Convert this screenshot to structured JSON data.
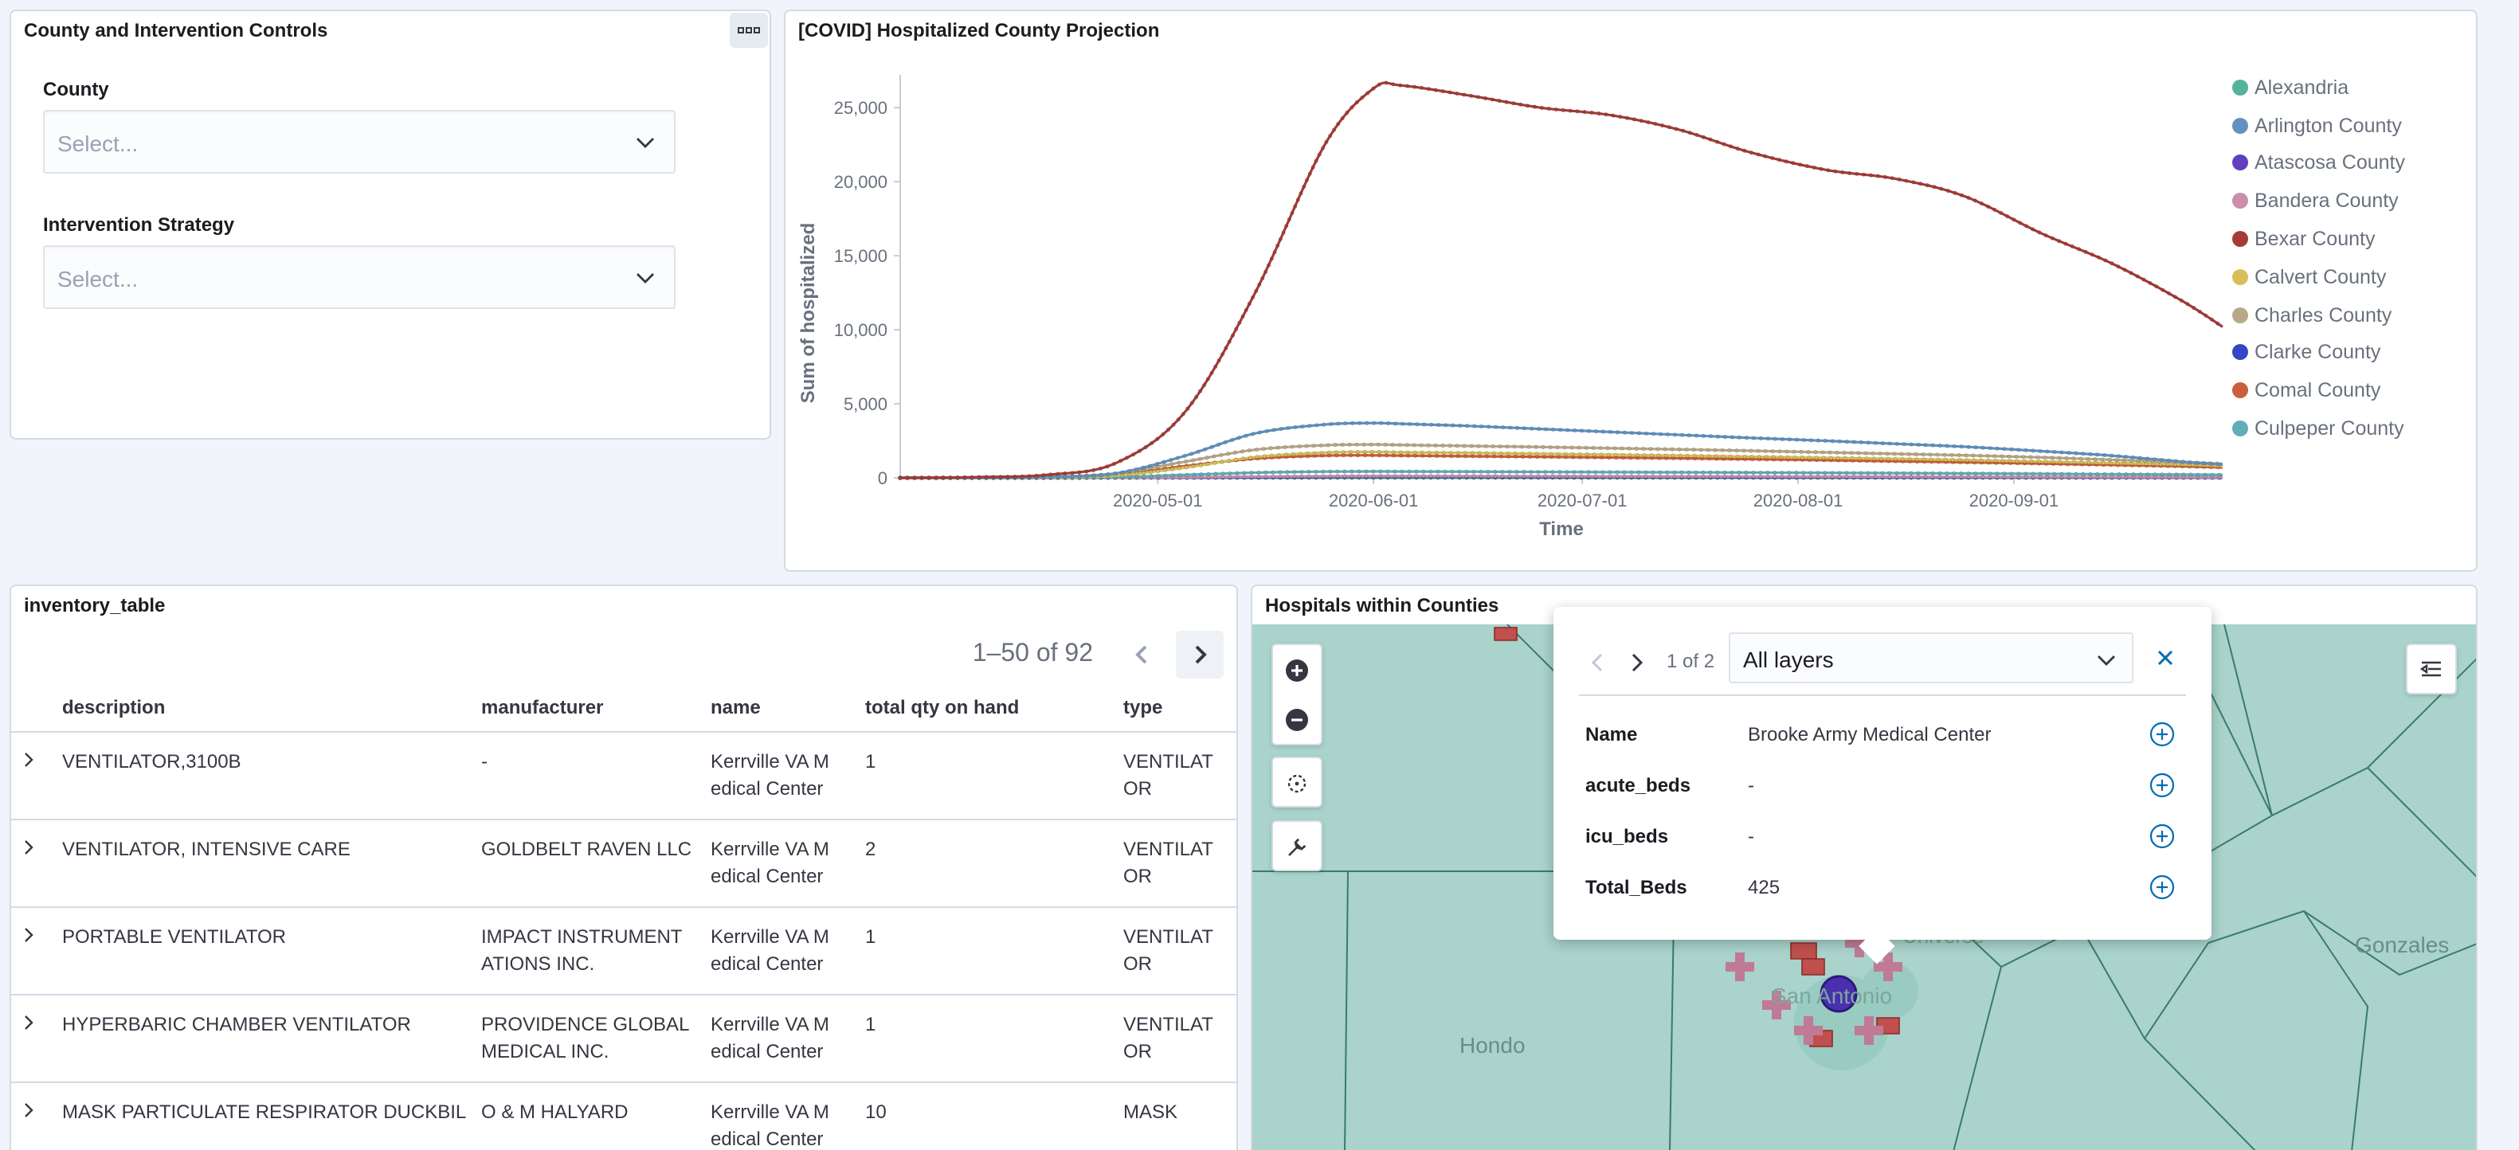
{
  "controls": {
    "title": "County and Intervention Controls",
    "menu_icon": "ellipsis-icon",
    "county_label": "County",
    "county_placeholder": "Select...",
    "strategy_label": "Intervention Strategy",
    "strategy_placeholder": "Select..."
  },
  "chart_panel": {
    "title": "[COVID] Hospitalized County Projection"
  },
  "chart_data": {
    "type": "line",
    "title": "[COVID] Hospitalized County Projection",
    "xlabel": "Time",
    "ylabel": "Sum of hospitalized",
    "x_ticks": [
      "2020-05-01",
      "2020-06-01",
      "2020-07-01",
      "2020-08-01",
      "2020-09-01"
    ],
    "y_ticks": [
      "0",
      "5,000",
      "10,000",
      "15,000",
      "20,000",
      "25,000"
    ],
    "ylim": [
      0,
      27000
    ],
    "x_dates": [
      "2020-03-25",
      "2020-04-05",
      "2020-04-15",
      "2020-04-25",
      "2020-05-05",
      "2020-05-15",
      "2020-05-25",
      "2020-06-01",
      "2020-06-05",
      "2020-06-15",
      "2020-06-25",
      "2020-07-05",
      "2020-07-15",
      "2020-07-25",
      "2020-08-05",
      "2020-08-15",
      "2020-08-25",
      "2020-09-05",
      "2020-09-15",
      "2020-09-25",
      "2020-10-01"
    ],
    "legend_position": "right",
    "series": [
      {
        "name": "Alexandria",
        "color": "#54b399",
        "values": [
          0,
          0,
          0,
          0,
          0,
          0,
          0,
          0,
          0,
          0,
          0,
          0,
          0,
          0,
          0,
          0,
          0,
          0,
          0,
          0,
          0
        ]
      },
      {
        "name": "Arlington County",
        "color": "#6092c0",
        "values": [
          0,
          10,
          60,
          300,
          1500,
          3000,
          3600,
          3700,
          3650,
          3500,
          3300,
          3100,
          2900,
          2700,
          2500,
          2300,
          2100,
          1800,
          1500,
          1100,
          900
        ]
      },
      {
        "name": "Atascosa County",
        "color": "#6040c0",
        "values": [
          0,
          0,
          0,
          5,
          20,
          40,
          60,
          70,
          70,
          70,
          65,
          60,
          55,
          50,
          45,
          40,
          35,
          30,
          25,
          20,
          18
        ]
      },
      {
        "name": "Bandera County",
        "color": "#ca8eae",
        "values": [
          0,
          0,
          2,
          10,
          40,
          80,
          110,
          120,
          120,
          115,
          110,
          100,
          95,
          90,
          80,
          75,
          70,
          60,
          55,
          45,
          40
        ]
      },
      {
        "name": "Bexar County",
        "color": "#a53b36",
        "values": [
          0,
          50,
          200,
          1000,
          4500,
          12500,
          22500,
          26300,
          26500,
          25800,
          25000,
          24500,
          23500,
          22000,
          20800,
          20200,
          19000,
          16500,
          14500,
          12000,
          10200
        ]
      },
      {
        "name": "Calvert County",
        "color": "#d6bf57",
        "values": [
          0,
          5,
          30,
          150,
          700,
          1400,
          1700,
          1750,
          1720,
          1680,
          1620,
          1560,
          1500,
          1430,
          1350,
          1280,
          1200,
          1100,
          1000,
          900,
          800
        ]
      },
      {
        "name": "Charles County",
        "color": "#b9a888",
        "values": [
          0,
          10,
          60,
          300,
          1100,
          1900,
          2200,
          2250,
          2220,
          2150,
          2080,
          2000,
          1920,
          1830,
          1720,
          1620,
          1520,
          1380,
          1220,
          1050,
          950
        ]
      },
      {
        "name": "Clarke County",
        "color": "#3445c8",
        "values": [
          0,
          0,
          1,
          5,
          20,
          40,
          55,
          60,
          60,
          58,
          55,
          52,
          50,
          47,
          44,
          41,
          38,
          34,
          30,
          26,
          24
        ]
      },
      {
        "name": "Comal County",
        "color": "#cb5e3c",
        "values": [
          0,
          5,
          40,
          200,
          800,
          1300,
          1500,
          1520,
          1500,
          1460,
          1420,
          1370,
          1320,
          1260,
          1190,
          1120,
          1050,
          960,
          870,
          780,
          700
        ]
      },
      {
        "name": "Culpeper County",
        "color": "#5faeba",
        "values": [
          0,
          2,
          10,
          50,
          200,
          350,
          420,
          430,
          425,
          415,
          400,
          385,
          370,
          355,
          335,
          315,
          295,
          270,
          245,
          220,
          200
        ]
      }
    ]
  },
  "table": {
    "title": "inventory_table",
    "pager_text": "1–50 of 92",
    "columns": [
      "description",
      "manufacturer",
      "name",
      "total qty on hand",
      "type"
    ],
    "rows": [
      {
        "description": "VENTILATOR,3100B",
        "manufacturer": " -",
        "name": "Kerrville VA M edical Center",
        "qty": "1",
        "type": "VENTILAT OR"
      },
      {
        "description": "VENTILATOR, INTENSIVE CARE",
        "manufacturer": "GOLDBELT RAVEN LLC",
        "name": "Kerrville VA M edical Center",
        "qty": "2",
        "type": "VENTILAT OR"
      },
      {
        "description": "PORTABLE VENTILATOR",
        "manufacturer": "IMPACT INSTRUMENT ATIONS INC.",
        "name": "Kerrville VA M edical Center",
        "qty": "1",
        "type": "VENTILAT OR"
      },
      {
        "description": "HYPERBARIC CHAMBER VENTILATOR",
        "manufacturer": "PROVIDENCE GLOBAL MEDICAL INC.",
        "name": "Kerrville VA M edical Center",
        "qty": "1",
        "type": "VENTILAT OR"
      },
      {
        "description": "MASK PARTICULATE RESPIRATOR DUCKBIL",
        "manufacturer": "O & M HALYARD",
        "name": "Kerrville VA M edical Center",
        "qty": "10",
        "type": "MASK"
      }
    ]
  },
  "map": {
    "title": "Hospitals within Counties",
    "labels": {
      "hondo": "Hondo",
      "gonzales": "Gonzales",
      "san_antonio": "San Antonio",
      "universe": "Universe"
    },
    "popup": {
      "counter": "1 of 2",
      "layer_select": "All layers",
      "rows": [
        {
          "key": "Name",
          "value": "Brooke Army Medical Center"
        },
        {
          "key": "acute_beds",
          "value": "-"
        },
        {
          "key": "icu_beds",
          "value": "-"
        },
        {
          "key": "Total_Beds",
          "value": "425"
        }
      ]
    },
    "colors": {
      "land": "#a9d3cb",
      "border": "#3a7a6d",
      "marker": "#c0504d"
    }
  }
}
